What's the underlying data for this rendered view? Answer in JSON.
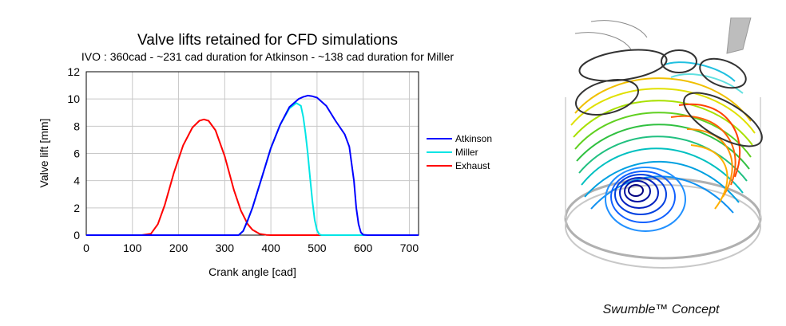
{
  "chart_data": {
    "type": "line",
    "title": "Valve lifts retained for CFD simulations",
    "subtitle": "IVO : 360cad - ~231 cad duration for Atkinson - ~138 cad duration for Miller",
    "xlabel": "Crank angle [cad]",
    "ylabel": "Valve lift [mm]",
    "xlim": [
      0,
      720
    ],
    "ylim": [
      0,
      12
    ],
    "xticks": [
      0,
      100,
      200,
      300,
      400,
      500,
      600,
      700
    ],
    "yticks": [
      0,
      2,
      4,
      6,
      8,
      10,
      12
    ],
    "grid": true,
    "legend_position": "right",
    "series": [
      {
        "name": "Atkinson",
        "color": "#0000ff",
        "x": [
          0,
          330,
          340,
          350,
          360,
          380,
          400,
          420,
          440,
          460,
          470,
          480,
          490,
          500,
          520,
          540,
          560,
          570,
          580,
          585,
          590,
          595,
          600,
          610,
          720
        ],
        "y": [
          0,
          0,
          0.3,
          1.1,
          2.0,
          4.2,
          6.4,
          8.1,
          9.4,
          10.0,
          10.15,
          10.25,
          10.2,
          10.1,
          9.5,
          8.4,
          7.4,
          6.5,
          4.0,
          2.0,
          0.8,
          0.2,
          0.03,
          0,
          0
        ]
      },
      {
        "name": "Miller",
        "color": "#00e5e5",
        "x": [
          0,
          330,
          340,
          350,
          360,
          380,
          400,
          420,
          440,
          455,
          465,
          470,
          475,
          480,
          485,
          490,
          495,
          500,
          505,
          510,
          720
        ],
        "y": [
          0,
          0,
          0.3,
          1.1,
          2.0,
          4.2,
          6.4,
          8.1,
          9.3,
          9.7,
          9.5,
          8.7,
          7.5,
          6.0,
          4.2,
          2.5,
          1.1,
          0.35,
          0.05,
          0,
          0
        ]
      },
      {
        "name": "Exhaust",
        "color": "#ff0000",
        "x": [
          0,
          120,
          140,
          155,
          170,
          190,
          210,
          230,
          245,
          255,
          265,
          280,
          300,
          320,
          335,
          350,
          360,
          375,
          390,
          400,
          720
        ],
        "y": [
          0,
          0,
          0.1,
          0.8,
          2.2,
          4.6,
          6.6,
          7.9,
          8.4,
          8.5,
          8.4,
          7.7,
          5.8,
          3.3,
          1.8,
          0.8,
          0.4,
          0.1,
          0.02,
          0,
          0
        ]
      }
    ]
  },
  "figure": {
    "caption": "Swumble™ Concept"
  }
}
